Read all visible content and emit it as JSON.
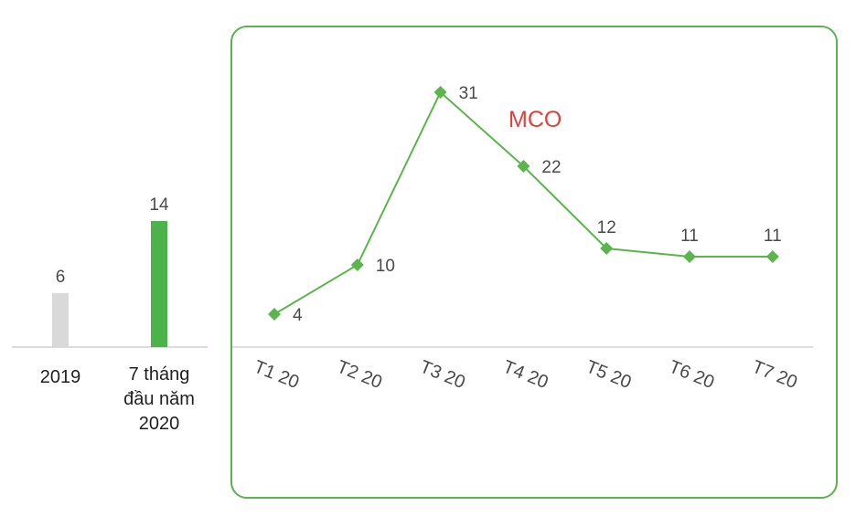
{
  "chart_data": [
    {
      "type": "bar",
      "categories": [
        "2019",
        "7 tháng đầu năm 2020"
      ],
      "values": [
        6,
        14
      ],
      "colors": [
        "#d9d9d9",
        "#4cb24a"
      ],
      "value_labels": [
        "6",
        "14"
      ],
      "category_lines": [
        [
          "2019"
        ],
        [
          "7 tháng",
          "đầu năm",
          "2020"
        ]
      ]
    },
    {
      "type": "line",
      "categories": [
        "T1 20",
        "T2 20",
        "T3 20",
        "T4 20",
        "T5 20",
        "T6 20",
        "T7 20"
      ],
      "values": [
        4,
        10,
        31,
        22,
        12,
        11,
        11
      ],
      "value_labels": [
        "4",
        "10",
        "31",
        "22",
        "12",
        "11",
        "11"
      ],
      "annotation": "MCO",
      "line_color": "#5cb54c",
      "annotation_color": "#d9423f"
    }
  ]
}
